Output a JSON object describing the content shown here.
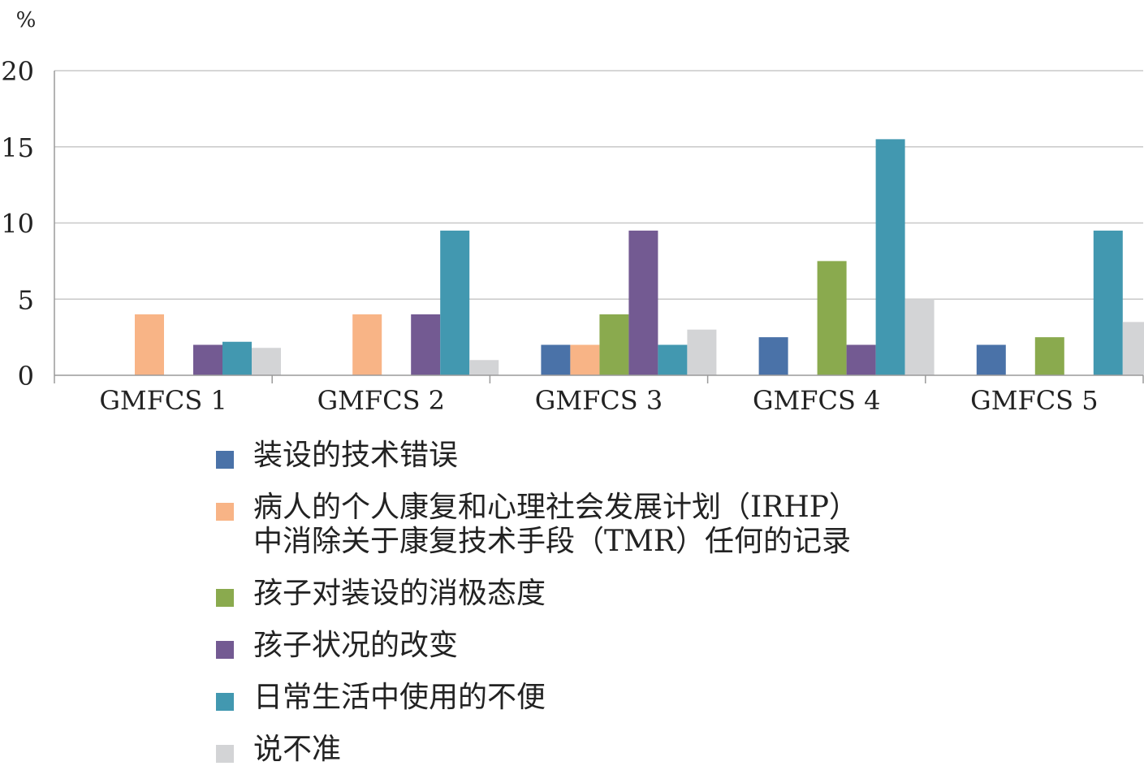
{
  "chart_data": {
    "type": "bar",
    "unit_label": "%",
    "categories": [
      "GMFCS 1",
      "GMFCS 2",
      "GMFCS 3",
      "GMFCS 4",
      "GMFCS 5"
    ],
    "ylim": [
      0,
      20
    ],
    "yticks": [
      0,
      5,
      10,
      15,
      20
    ],
    "grid": true,
    "legend_position": "bottom",
    "series": [
      {
        "name": "装设的技术错误",
        "color": "#4a72a8",
        "values": [
          0,
          0,
          2,
          2.5,
          2
        ]
      },
      {
        "name": "病人的个人康复和心理社会发展计划（IRHP）\n中消除关于康复技术手段（TMR）任何的记录",
        "color": "#f8b486",
        "values": [
          4,
          4,
          2,
          0,
          0
        ]
      },
      {
        "name": "孩子对装设的消极态度",
        "color": "#8aaa4e",
        "values": [
          0,
          0,
          4,
          7.5,
          2.5
        ]
      },
      {
        "name": "孩子状况的改变",
        "color": "#735a92",
        "values": [
          2,
          4,
          9.5,
          2,
          0
        ]
      },
      {
        "name": "日常生活中使用的不便",
        "color": "#4298b0",
        "values": [
          2.2,
          9.5,
          2,
          15.5,
          9.5
        ]
      },
      {
        "name": "说不准",
        "color": "#d3d4d6",
        "values": [
          1.8,
          1,
          3,
          5,
          3.5
        ]
      }
    ]
  }
}
